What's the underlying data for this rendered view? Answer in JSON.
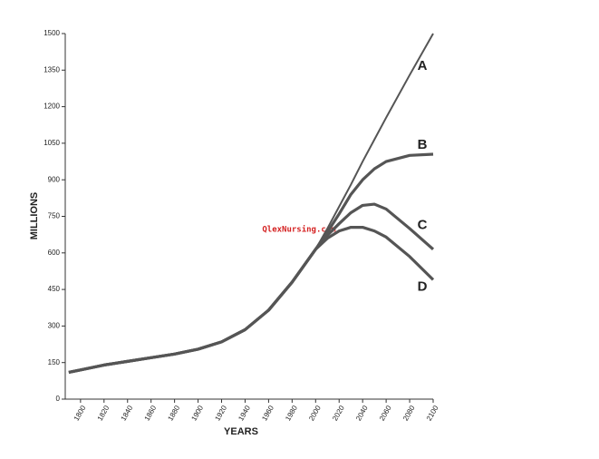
{
  "chart_data": {
    "type": "line",
    "x_label": "YEARS",
    "y_label": "MILLIONS",
    "watermark": "QlexNursing.com",
    "x": [
      1790,
      1800,
      1820,
      1840,
      1860,
      1880,
      1900,
      1920,
      1940,
      1960,
      1980,
      2000,
      2010,
      2020,
      2030,
      2040,
      2050,
      2060,
      2080,
      2100
    ],
    "series": [
      {
        "name": "A",
        "color": "#555555",
        "values": [
          110,
          120,
          140,
          155,
          170,
          185,
          205,
          235,
          285,
          365,
          480,
          615,
          700,
          790,
          880,
          975,
          1065,
          1155,
          1330,
          1500
        ]
      },
      {
        "name": "B",
        "color": "#555555",
        "values": [
          110,
          120,
          140,
          155,
          170,
          185,
          205,
          235,
          285,
          365,
          480,
          615,
          685,
          760,
          840,
          900,
          945,
          975,
          1000,
          1005
        ]
      },
      {
        "name": "C",
        "color": "#555555",
        "values": [
          110,
          120,
          140,
          155,
          170,
          185,
          205,
          235,
          285,
          365,
          480,
          615,
          672,
          720,
          765,
          795,
          800,
          780,
          700,
          615
        ]
      },
      {
        "name": "D",
        "color": "#555555",
        "values": [
          110,
          120,
          140,
          155,
          170,
          185,
          205,
          235,
          285,
          365,
          480,
          615,
          660,
          690,
          705,
          705,
          690,
          665,
          585,
          490
        ]
      }
    ],
    "xlim": [
      1787,
      2100
    ],
    "xticks": [
      1800,
      1820,
      1840,
      1860,
      1880,
      1900,
      1920,
      1940,
      1960,
      1980,
      2000,
      2020,
      2040,
      2060,
      2080,
      2100
    ],
    "ylim": [
      0,
      1500
    ],
    "yticks": [
      0,
      150,
      300,
      450,
      600,
      750,
      900,
      1050,
      1200,
      1350,
      1500
    ],
    "grid": false
  }
}
